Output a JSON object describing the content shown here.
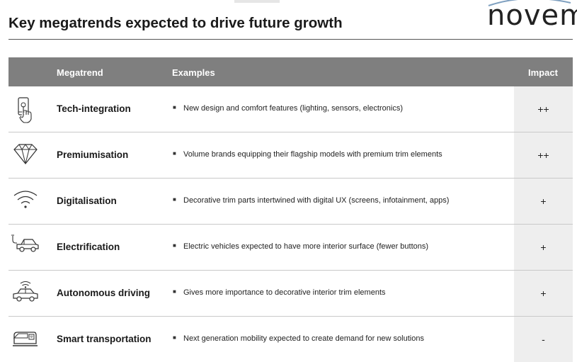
{
  "title": "Key megatrends expected to drive future growth",
  "logo": {
    "text": "novem"
  },
  "table": {
    "headers": {
      "megatrend": "Megatrend",
      "examples": "Examples",
      "impact": "Impact"
    },
    "rows": [
      {
        "icon": "touch-phone-icon",
        "megatrend": "Tech-integration",
        "example": "New design and comfort features (lighting, sensors, electronics)",
        "impact": "++"
      },
      {
        "icon": "diamond-icon",
        "megatrend": "Premiumisation",
        "example": "Volume brands equipping their flagship models with premium trim elements",
        "impact": "++"
      },
      {
        "icon": "wifi-icon",
        "megatrend": "Digitalisation",
        "example": "Decorative trim parts intertwined with digital UX (screens, infotainment, apps)",
        "impact": "+"
      },
      {
        "icon": "electric-car-icon",
        "megatrend": "Electrification",
        "example": "Electric vehicles expected to have more interior surface (fewer buttons)",
        "impact": "+"
      },
      {
        "icon": "connected-car-icon",
        "megatrend": "Autonomous driving",
        "example": "Gives more importance to decorative interior trim elements",
        "impact": "+"
      },
      {
        "icon": "smart-bus-icon",
        "megatrend": "Smart transportation",
        "example": "Next generation mobility expected to create demand for new solutions",
        "impact": "-"
      }
    ]
  },
  "colors": {
    "header_bg": "#7f7f7f",
    "impact_bg": "#eeeeee",
    "logo_arc": "#7fa0c0"
  }
}
